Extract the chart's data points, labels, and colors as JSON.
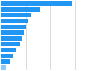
{
  "values": [
    6490,
    3600,
    2800,
    2500,
    2300,
    2100,
    1900,
    1700,
    1400,
    1100,
    800,
    450
  ],
  "bar_color": "#2196F3",
  "last_bar_color": "#90CAF9",
  "background_color": "#ffffff",
  "grid_color": "#cccccc",
  "xmax": 9000,
  "n_gridlines": 4
}
